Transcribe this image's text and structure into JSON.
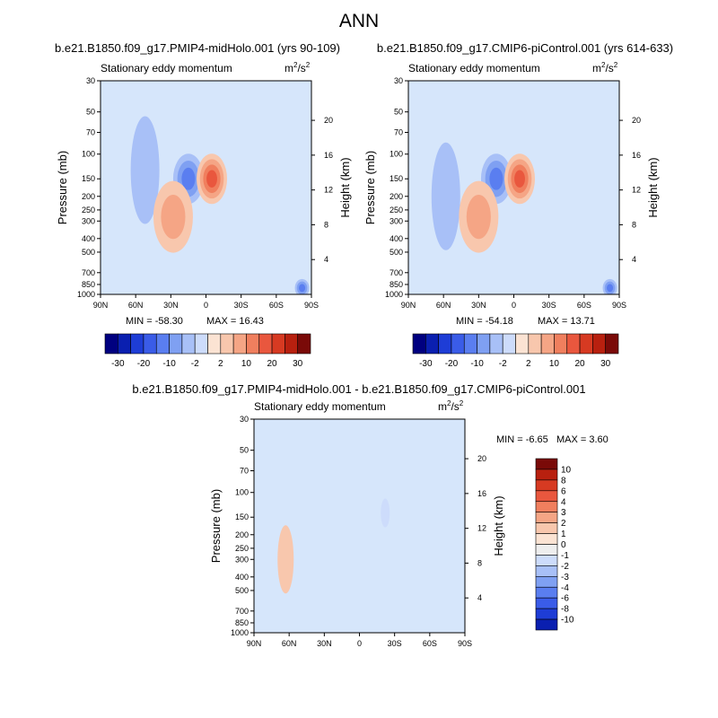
{
  "figure": {
    "title": "ANN",
    "diff_title": "b.e21.B1850.f09_g17.PMIP4-midHolo.001 - b.e21.B1850.f09_g17.CMIP6-piControl.001"
  },
  "chart_data": [
    {
      "type": "heatmap",
      "title": "b.e21.B1850.f09_g17.PMIP4-midHolo.001 (yrs 90-109)",
      "subtitle_left": "Stationary eddy momentum",
      "units": "m2/s2",
      "xlabel": "",
      "ylabel": "Pressure (mb)",
      "ylabel_right": "Height (km)",
      "x_ticks": [
        "90N",
        "60N",
        "30N",
        "0",
        "30S",
        "60S",
        "90S"
      ],
      "y_ticks": [
        30,
        50,
        70,
        100,
        150,
        200,
        250,
        300,
        400,
        500,
        700,
        850,
        1000
      ],
      "y_right_ticks": [
        20,
        16,
        12,
        8,
        4
      ],
      "ylim": [
        1000,
        30
      ],
      "xlim": [
        90,
        -90
      ],
      "y_scale": "log",
      "min": -58.3,
      "max": 16.43,
      "min_label": "MIN = -58.30",
      "max_label": "MAX = 16.43",
      "contour_levels": [
        -30,
        -25,
        -20,
        -15,
        -10,
        -5,
        -2,
        -1,
        1,
        2,
        5,
        10,
        15,
        20,
        25,
        30
      ],
      "features": [
        {
          "lat": 52,
          "plev": 130,
          "value": -3,
          "note": "negative column"
        },
        {
          "lat": 15,
          "plev": 150,
          "value": -10
        },
        {
          "lat": -5,
          "plev": 150,
          "value": 15
        },
        {
          "lat": 28,
          "plev": 280,
          "value": 5
        },
        {
          "lat": -82,
          "plev": 900,
          "value": -10
        }
      ]
    },
    {
      "type": "heatmap",
      "title": "b.e21.B1850.f09_g17.CMIP6-piControl.001 (yrs 614-633)",
      "subtitle_left": "Stationary eddy momentum",
      "units": "m2/s2",
      "xlabel": "",
      "ylabel": "Pressure (mb)",
      "ylabel_right": "Height (km)",
      "x_ticks": [
        "90N",
        "60N",
        "30N",
        "0",
        "30S",
        "60S",
        "90S"
      ],
      "y_ticks": [
        30,
        50,
        70,
        100,
        150,
        200,
        250,
        300,
        400,
        500,
        700,
        850,
        1000
      ],
      "y_right_ticks": [
        20,
        16,
        12,
        8,
        4
      ],
      "ylim": [
        1000,
        30
      ],
      "xlim": [
        90,
        -90
      ],
      "y_scale": "log",
      "min": -54.18,
      "max": 13.71,
      "min_label": "MIN = -54.18",
      "max_label": "MAX = 13.71",
      "contour_levels": [
        -30,
        -25,
        -20,
        -15,
        -10,
        -5,
        -2,
        -1,
        1,
        2,
        5,
        10,
        15,
        20,
        25,
        30
      ],
      "features": [
        {
          "lat": 58,
          "plev": 200,
          "value": -3,
          "note": "negative column"
        },
        {
          "lat": 15,
          "plev": 150,
          "value": -10
        },
        {
          "lat": -5,
          "plev": 150,
          "value": 15
        },
        {
          "lat": 30,
          "plev": 280,
          "value": 5
        },
        {
          "lat": -82,
          "plev": 900,
          "value": -10
        }
      ]
    },
    {
      "type": "heatmap",
      "title": "",
      "subtitle_left": "Stationary eddy momentum",
      "units": "m2/s2",
      "xlabel": "",
      "ylabel": "Pressure (mb)",
      "ylabel_right": "Height (km)",
      "x_ticks": [
        "90N",
        "60N",
        "30N",
        "0",
        "30S",
        "60S",
        "90S"
      ],
      "y_ticks": [
        30,
        50,
        70,
        100,
        150,
        200,
        250,
        300,
        400,
        500,
        700,
        850,
        1000
      ],
      "y_right_ticks": [
        20,
        16,
        12,
        8,
        4
      ],
      "ylim": [
        1000,
        30
      ],
      "xlim": [
        90,
        -90
      ],
      "y_scale": "log",
      "min": -6.65,
      "max": 3.6,
      "min_label": "MIN =  -6.65",
      "max_label": "MAX =   3.60",
      "contour_levels": [
        -10,
        -8,
        -6,
        -4,
        -3,
        -2,
        -1,
        0,
        1,
        2,
        3,
        4,
        6,
        8,
        10
      ],
      "features": [
        {
          "lat": 63,
          "plev": 300,
          "value": 1.5
        },
        {
          "lat": -22,
          "plev": 140,
          "value": -1.2
        }
      ]
    }
  ],
  "colorbar_shared": {
    "labels": [
      "-30",
      "-20",
      "-10",
      "-2",
      "2",
      "10",
      "20",
      "30"
    ],
    "colors": [
      "#000080",
      "#0a1fb0",
      "#1e3dd6",
      "#3a5ce8",
      "#5a7ef0",
      "#7fa0f2",
      "#a8c0f7",
      "#cddcfb",
      "#fbe3d3",
      "#f8c7ad",
      "#f5a585",
      "#f07f5e",
      "#e9573e",
      "#d73a22",
      "#b8200f",
      "#7a0a08"
    ]
  },
  "colorbar_diff": {
    "labels": [
      "10",
      "8",
      "6",
      "4",
      "3",
      "2",
      "1",
      "0",
      "-1",
      "-2",
      "-3",
      "-4",
      "-6",
      "-8",
      "-10"
    ],
    "colors": [
      "#7a0a08",
      "#b8200f",
      "#d73a22",
      "#e9573e",
      "#f07f5e",
      "#f5a585",
      "#f8c7ad",
      "#fbe3d3",
      "#eeeeee",
      "#cddcfb",
      "#a8c0f7",
      "#7fa0f2",
      "#5a7ef0",
      "#3a5ce8",
      "#1e3dd6",
      "#0a1fb0"
    ]
  }
}
